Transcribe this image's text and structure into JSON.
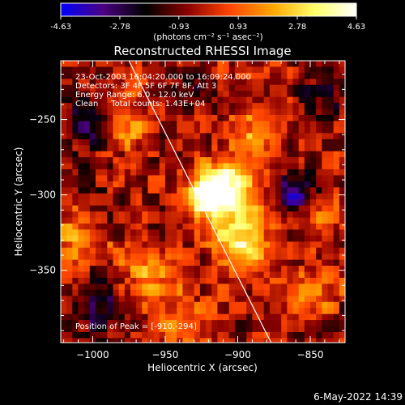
{
  "colorbar": {
    "tick_labels": [
      "-4.63",
      "-2.78",
      "-0.93",
      "0.93",
      "2.78",
      "4.63"
    ],
    "unit_label": "(photons cm⁻² s⁻¹ asec⁻²)"
  },
  "plot": {
    "title": "Reconstructed RHESSI Image",
    "info": [
      "23-Oct-2003 16:04:20.000 to 16:09:24.000",
      "Detectors: 3F 4F 5F 6F 7F 8F, Att 3",
      "Energy Range: 6.0 - 12.0 keV",
      "Clean     Total counts: 1.43E+04"
    ],
    "peak_label": "Position of Peak = [-910,-294]"
  },
  "footer": {
    "date": "6-May-2022 14:39"
  },
  "chart_data": {
    "type": "heatmap",
    "title": "Reconstructed RHESSI Image",
    "xlabel": "Heliocentric X (arcsec)",
    "ylabel": "Heliocentric Y (arcsec)",
    "xlim": [
      -1022,
      -826
    ],
    "ylim": [
      -398,
      -211
    ],
    "x_ticks": [
      -1000,
      -950,
      -900,
      -850
    ],
    "y_ticks": [
      -250,
      -300,
      -350
    ],
    "x_tick_labels": [
      "−1000",
      "−950",
      "−900",
      "−850"
    ],
    "y_tick_labels": [
      "−250",
      "−300",
      "−350"
    ],
    "color_range": [
      -4.63,
      4.63
    ],
    "colormap": [
      "#0000ff",
      "#4b0082",
      "#000000",
      "#8b0000",
      "#ff4500",
      "#ffa500",
      "#ffff66",
      "#ffffff"
    ],
    "peak": {
      "x": -910,
      "y": -294
    },
    "limb_line": [
      [
        -975,
        -211
      ],
      [
        -877,
        -398
      ]
    ],
    "sources": [
      {
        "x": -910,
        "y": -294,
        "sigma": 12,
        "amp": 5.0
      },
      {
        "x": -925,
        "y": -301,
        "sigma": 9,
        "amp": 3.6
      },
      {
        "x": -900,
        "y": -318,
        "sigma": 14,
        "amp": 2.8
      },
      {
        "x": -895,
        "y": -340,
        "sigma": 12,
        "amp": 2.7
      },
      {
        "x": -965,
        "y": -352,
        "sigma": 14,
        "amp": 2.2
      },
      {
        "x": -1012,
        "y": -332,
        "sigma": 12,
        "amp": 2.0
      },
      {
        "x": -975,
        "y": -255,
        "sigma": 12,
        "amp": 2.0
      },
      {
        "x": -888,
        "y": -258,
        "sigma": 13,
        "amp": 2.2
      },
      {
        "x": -845,
        "y": -315,
        "sigma": 11,
        "amp": 1.8
      },
      {
        "x": -848,
        "y": -365,
        "sigma": 12,
        "amp": 1.8
      },
      {
        "x": -940,
        "y": -385,
        "sigma": 14,
        "amp": 1.5
      },
      {
        "x": -860,
        "y": -300,
        "sigma": 10,
        "amp": -3.0
      },
      {
        "x": -1002,
        "y": -255,
        "sigma": 12,
        "amp": -2.4
      },
      {
        "x": -995,
        "y": -372,
        "sigma": 13,
        "amp": -2.2
      },
      {
        "x": -835,
        "y": -230,
        "sigma": 12,
        "amp": -1.6
      },
      {
        "x": -935,
        "y": -228,
        "sigma": 9,
        "amp": -1.4
      }
    ]
  }
}
